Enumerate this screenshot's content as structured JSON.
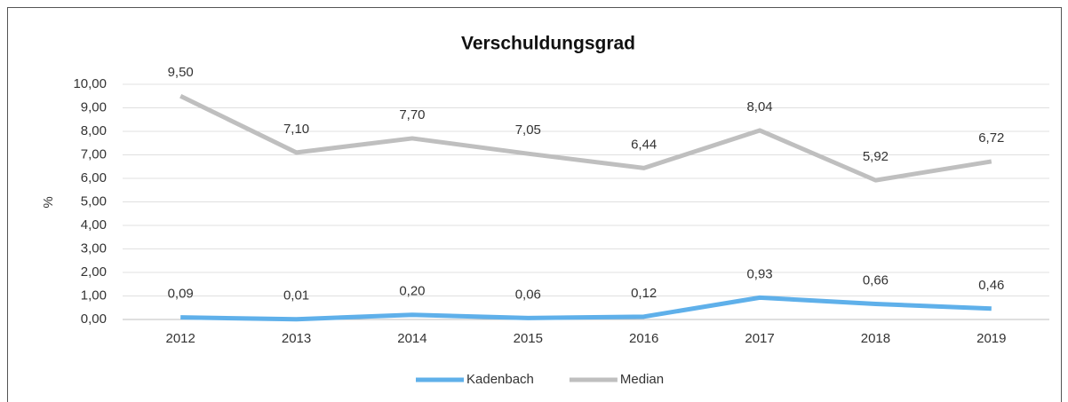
{
  "chart_data": {
    "type": "line",
    "title": "Verschuldungsgrad",
    "y_label": "%",
    "categories": [
      "2012",
      "2013",
      "2014",
      "2015",
      "2016",
      "2017",
      "2018",
      "2019"
    ],
    "series": [
      {
        "name": "Kadenbach",
        "color": "#5fb0ea",
        "values": [
          0.09,
          0.01,
          0.2,
          0.06,
          0.12,
          0.93,
          0.66,
          0.46
        ],
        "value_labels": [
          "0,09",
          "0,01",
          "0,20",
          "0,06",
          "0,12",
          "0,93",
          "0,66",
          "0,46"
        ]
      },
      {
        "name": "Median",
        "color": "#bfbfbf",
        "values": [
          9.5,
          7.1,
          7.7,
          7.05,
          6.44,
          8.04,
          5.92,
          6.72
        ],
        "value_labels": [
          "9,50",
          "7,10",
          "7,70",
          "7,05",
          "6,44",
          "8,04",
          "5,92",
          "6,72"
        ]
      }
    ],
    "ylim": [
      0,
      10
    ],
    "yticks": [
      {
        "value": 0,
        "label": "0,00"
      },
      {
        "value": 1,
        "label": "1,00"
      },
      {
        "value": 2,
        "label": "2,00"
      },
      {
        "value": 3,
        "label": "3,00"
      },
      {
        "value": 4,
        "label": "4,00"
      },
      {
        "value": 5,
        "label": "5,00"
      },
      {
        "value": 6,
        "label": "6,00"
      },
      {
        "value": 7,
        "label": "7,00"
      },
      {
        "value": 8,
        "label": "8,00"
      },
      {
        "value": 9,
        "label": "9,00"
      },
      {
        "value": 10,
        "label": "10,00"
      }
    ],
    "grid": true,
    "legend": "bottom"
  }
}
